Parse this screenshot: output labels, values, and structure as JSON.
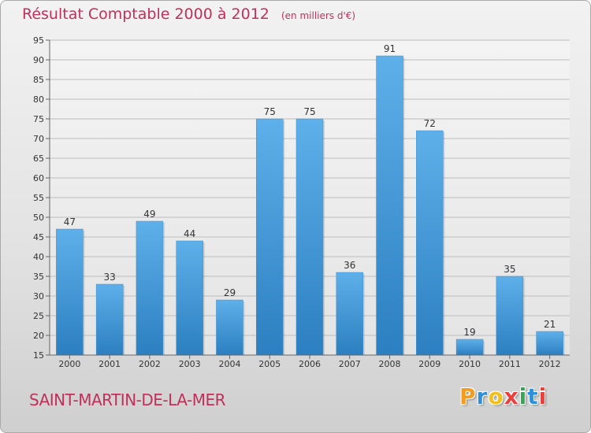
{
  "title": "Résultat Comptable 2000 à 2012",
  "subtitle": "(en milliers d'€)",
  "location": "SAINT-MARTIN-DE-LA-MER",
  "brand": {
    "letters": [
      "P",
      "r",
      "o",
      "x",
      "i",
      "t",
      "i"
    ],
    "colors": [
      "#f39c1f",
      "#2f8fd8",
      "#f2c01e",
      "#e8403c",
      "#33a852",
      "#2f8fd8",
      "#e8403c"
    ]
  },
  "colors": {
    "bar_top": "#5eb0ea",
    "bar_bottom": "#2c7fc0",
    "title": "#c0305a",
    "grid": "#bdbdbd"
  },
  "chart_data": {
    "type": "bar",
    "title": "Résultat Comptable 2000 à 2012",
    "subtitle": "(en milliers d'€)",
    "categories": [
      "2000",
      "2001",
      "2002",
      "2003",
      "2004",
      "2005",
      "2006",
      "2007",
      "2008",
      "2009",
      "2010",
      "2011",
      "2012"
    ],
    "values": [
      47,
      33,
      49,
      44,
      29,
      75,
      75,
      36,
      91,
      72,
      19,
      35,
      21
    ],
    "ylim": [
      15,
      95
    ],
    "ytick_step": 5,
    "grid": true,
    "data_labels": true
  }
}
